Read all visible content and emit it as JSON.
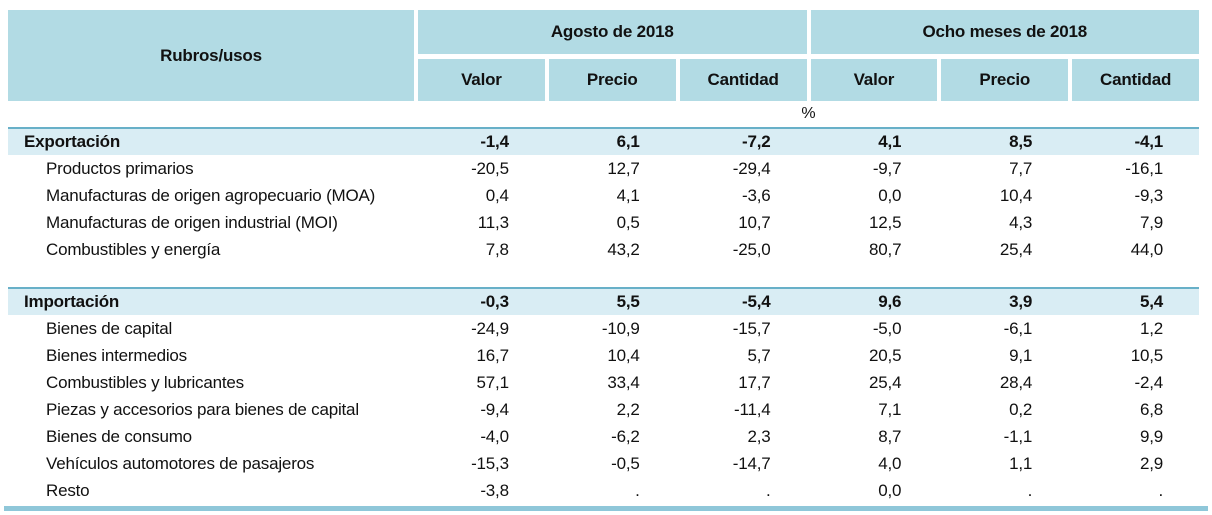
{
  "chart_data": {
    "type": "table",
    "corner_label": "Rubros/usos",
    "unit_label": "%",
    "col_groups": [
      {
        "label": "Agosto de 2018",
        "columns": [
          "Valor",
          "Precio",
          "Cantidad"
        ]
      },
      {
        "label": "Ocho meses de 2018",
        "columns": [
          "Valor",
          "Precio",
          "Cantidad"
        ]
      }
    ],
    "sections": [
      {
        "label": "Exportación",
        "values": [
          "-1,4",
          "6,1",
          "-7,2",
          "4,1",
          "8,5",
          "-4,1"
        ],
        "rows": [
          {
            "label": "Productos primarios",
            "values": [
              "-20,5",
              "12,7",
              "-29,4",
              "-9,7",
              "7,7",
              "-16,1"
            ]
          },
          {
            "label": "Manufacturas de origen agropecuario (MOA)",
            "values": [
              "0,4",
              "4,1",
              "-3,6",
              "0,0",
              "10,4",
              "-9,3"
            ]
          },
          {
            "label": "Manufacturas de origen industrial (MOI)",
            "values": [
              "11,3",
              "0,5",
              "10,7",
              "12,5",
              "4,3",
              "7,9"
            ]
          },
          {
            "label": "Combustibles y energía",
            "values": [
              "7,8",
              "43,2",
              "-25,0",
              "80,7",
              "25,4",
              "44,0"
            ]
          }
        ]
      },
      {
        "label": "Importación",
        "values": [
          "-0,3",
          "5,5",
          "-5,4",
          "9,6",
          "3,9",
          "5,4"
        ],
        "rows": [
          {
            "label": "Bienes de capital",
            "values": [
              "-24,9",
              "-10,9",
              "-15,7",
              "-5,0",
              "-6,1",
              "1,2"
            ]
          },
          {
            "label": "Bienes intermedios",
            "values": [
              "16,7",
              "10,4",
              "5,7",
              "20,5",
              "9,1",
              "10,5"
            ]
          },
          {
            "label": "Combustibles y lubricantes",
            "values": [
              "57,1",
              "33,4",
              "17,7",
              "25,4",
              "28,4",
              "-2,4"
            ]
          },
          {
            "label": "Piezas y accesorios para bienes de capital",
            "values": [
              "-9,4",
              "2,2",
              "-11,4",
              "7,1",
              "0,2",
              "6,8"
            ]
          },
          {
            "label": "Bienes de consumo",
            "values": [
              "-4,0",
              "-6,2",
              "2,3",
              "8,7",
              "-1,1",
              "9,9"
            ]
          },
          {
            "label": "Vehículos automotores de pasajeros",
            "values": [
              "-15,3",
              "-0,5",
              "-14,7",
              "4,0",
              "1,1",
              "2,9"
            ]
          },
          {
            "label": "Resto",
            "values": [
              "-3,8",
              ".",
              ".",
              "0,0",
              ".",
              "."
            ]
          }
        ]
      }
    ]
  },
  "colors": {
    "header_bg": "#b2dbe4",
    "section_row_bg": "#d9edf4",
    "section_row_border": "#68b0c8",
    "bottom_rule": "#8fc7d9",
    "text": "#111111"
  }
}
